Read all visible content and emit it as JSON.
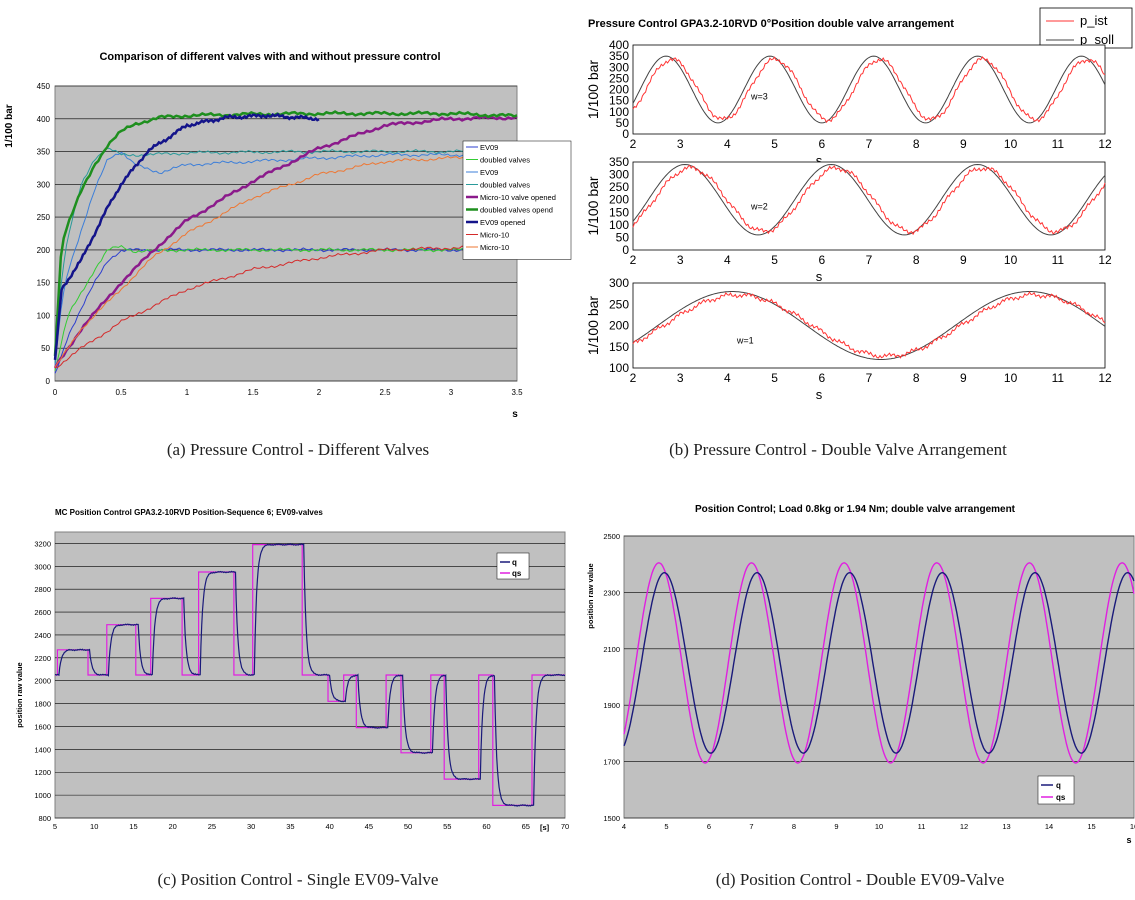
{
  "captions": {
    "a": "(a)  Pressure Control - Different Valves",
    "b": "(b)  Pressure Control - Double Valve Arrangement",
    "c": "(c)  Position Control - Single EV09-Valve",
    "d": "(d)  Position Control - Double EV09-Valve"
  },
  "chart_data": [
    {
      "id": "a",
      "type": "line",
      "title": "Comparison of different valves with and without pressure control",
      "xlabel": "s",
      "ylabel": "1/100 bar",
      "xlim": [
        0,
        3.5
      ],
      "ylim": [
        0,
        450
      ],
      "xticks": [
        "0",
        "0.5",
        "1",
        "1.5",
        "2",
        "2.5",
        "3",
        "3.5"
      ],
      "yticks": [
        "0",
        "50",
        "100",
        "150",
        "200",
        "250",
        "300",
        "350",
        "400",
        "450"
      ],
      "grid": true,
      "legend_position": "right",
      "series": [
        {
          "name": "EV09",
          "color": "#2e3fcf",
          "x": [
            0,
            0.05,
            0.1,
            0.2,
            0.3,
            0.4,
            0.5,
            0.6,
            1,
            2,
            3,
            3.5
          ],
          "y": [
            10,
            40,
            70,
            110,
            150,
            185,
            198,
            200,
            200,
            200,
            200,
            200
          ]
        },
        {
          "name": "doubled valves",
          "color": "#33cc33",
          "x": [
            0,
            0.05,
            0.1,
            0.2,
            0.3,
            0.4,
            0.5,
            0.6,
            1,
            2,
            3,
            3.5
          ],
          "y": [
            15,
            60,
            100,
            135,
            170,
            200,
            205,
            198,
            200,
            200,
            200,
            200
          ]
        },
        {
          "name": "EV09",
          "color": "#3d7fd9",
          "x": [
            0,
            0.05,
            0.1,
            0.2,
            0.3,
            0.4,
            0.5,
            0.6,
            0.8,
            1,
            1.5,
            2,
            2.5,
            3,
            3.5
          ],
          "y": [
            20,
            120,
            170,
            230,
            290,
            340,
            350,
            330,
            318,
            330,
            335,
            340,
            345,
            345,
            345
          ]
        },
        {
          "name": "doubled valves",
          "color": "#2a9a9a",
          "x": [
            0,
            0.05,
            0.1,
            0.2,
            0.3,
            0.4,
            0.5,
            0.7,
            1,
            2,
            3,
            3.5
          ],
          "y": [
            30,
            160,
            220,
            300,
            340,
            355,
            345,
            345,
            348,
            350,
            350,
            350
          ]
        },
        {
          "name": "Micro-10 valve opened",
          "color": "#8b1a8b",
          "x": [
            0,
            0.2,
            0.5,
            0.75,
            1,
            1.5,
            2,
            2.5,
            3,
            3.5
          ],
          "y": [
            20,
            80,
            150,
            200,
            245,
            305,
            355,
            390,
            400,
            402
          ]
        },
        {
          "name": "doubled valves opend",
          "color": "#1e8f1e",
          "x": [
            0,
            0.05,
            0.1,
            0.2,
            0.3,
            0.4,
            0.5,
            0.6,
            0.8,
            1,
            1.5,
            2,
            2.5,
            3,
            3.5
          ],
          "y": [
            40,
            210,
            240,
            290,
            330,
            360,
            380,
            392,
            402,
            405,
            407,
            408,
            408,
            408,
            404
          ]
        },
        {
          "name": "EV09 opened",
          "color": "#14148a",
          "x": [
            0,
            0.05,
            0.1,
            0.2,
            0.3,
            0.4,
            0.5,
            0.7,
            1,
            1.3,
            1.6,
            2
          ],
          "y": [
            30,
            140,
            155,
            185,
            225,
            265,
            300,
            350,
            390,
            402,
            405,
            400
          ]
        },
        {
          "name": "Micro-10",
          "color": "#d42a2a",
          "x": [
            0,
            0.2,
            0.5,
            0.75,
            1,
            1.5,
            2,
            2.5,
            3,
            3.5
          ],
          "y": [
            20,
            50,
            90,
            115,
            140,
            170,
            188,
            200,
            203,
            205
          ]
        },
        {
          "name": "Micro-10",
          "color": "#ee7733",
          "x": [
            0,
            0.2,
            0.5,
            0.75,
            1,
            1.5,
            2,
            2.5,
            3,
            3.5
          ],
          "y": [
            20,
            80,
            140,
            190,
            225,
            280,
            315,
            335,
            340,
            345
          ]
        }
      ]
    },
    {
      "id": "b",
      "type": "line",
      "title": "Pressure Control GPA3.2-10RVD 0°Position double valve arrangement",
      "legend_position": "top-right",
      "legend": [
        "p_ist",
        "p_soll"
      ],
      "subplots": [
        {
          "annotation": "w=3",
          "xlabel": "s",
          "ylabel": "1/100 bar",
          "xlim": [
            2,
            12
          ],
          "ylim": [
            0,
            400
          ],
          "xticks": [
            "2",
            "3",
            "4",
            "5",
            "6",
            "7",
            "8",
            "9",
            "10",
            "11",
            "12"
          ],
          "yticks": [
            "0",
            "50",
            "100",
            "150",
            "200",
            "250",
            "300",
            "350",
            "400"
          ],
          "mean": 200,
          "amplitude": 150,
          "period": 2.2,
          "peak_x": 2.7
        },
        {
          "annotation": "w=2",
          "xlabel": "s",
          "ylabel": "1/100 bar",
          "xlim": [
            2,
            12
          ],
          "ylim": [
            0,
            350
          ],
          "xticks": [
            "2",
            "3",
            "4",
            "5",
            "6",
            "7",
            "8",
            "9",
            "10",
            "11",
            "12"
          ],
          "yticks": [
            "0",
            "50",
            "100",
            "150",
            "200",
            "250",
            "300",
            "350"
          ],
          "mean": 200,
          "amplitude": 140,
          "period": 3.1,
          "peak_x": 3.1
        },
        {
          "annotation": "w=1",
          "xlabel": "s",
          "ylabel": "1/100 bar",
          "xlim": [
            2,
            12
          ],
          "ylim": [
            100,
            300
          ],
          "xticks": [
            "2",
            "3",
            "4",
            "5",
            "6",
            "7",
            "8",
            "9",
            "10",
            "11",
            "12"
          ],
          "yticks": [
            "100",
            "150",
            "200",
            "250",
            "300"
          ],
          "mean": 200,
          "amplitude": 80,
          "period": 6.3,
          "peak_x": 4.1
        }
      ]
    },
    {
      "id": "c",
      "type": "line",
      "title": "MC Position Control GPA3.2-10RVD Position-Sequence 6; EV09-valves",
      "xlabel": "[s]",
      "ylabel": "position raw value",
      "xlim": [
        5,
        70
      ],
      "ylim": [
        800,
        3300
      ],
      "xticks": [
        "5",
        "10",
        "15",
        "20",
        "25",
        "30",
        "35",
        "40",
        "45",
        "50",
        "55",
        "60",
        "65",
        "70"
      ],
      "yticks": [
        "800",
        "1000",
        "1200",
        "1400",
        "1600",
        "1800",
        "2000",
        "2200",
        "2400",
        "2600",
        "2800",
        "3000",
        "3200"
      ],
      "grid": true,
      "legend_position": "top-right",
      "legend": [
        "q",
        "qs"
      ],
      "qs_steps": [
        [
          5,
          2050
        ],
        [
          5.3,
          2270
        ],
        [
          9.2,
          2050
        ],
        [
          11.6,
          2490
        ],
        [
          15.3,
          2050
        ],
        [
          17.2,
          2720
        ],
        [
          21.2,
          2050
        ],
        [
          23.3,
          2950
        ],
        [
          27.8,
          2050
        ],
        [
          30.2,
          3190
        ],
        [
          36.5,
          2050
        ],
        [
          39.8,
          1820
        ],
        [
          41.8,
          2050
        ],
        [
          43.4,
          1590
        ],
        [
          47.2,
          2050
        ],
        [
          49.1,
          1370
        ],
        [
          52.9,
          2050
        ],
        [
          54.6,
          1140
        ],
        [
          59,
          2050
        ],
        [
          60.8,
          910
        ],
        [
          65.8,
          2050
        ],
        [
          70,
          2050
        ]
      ]
    },
    {
      "id": "d",
      "type": "line",
      "title": "Position Control; Load 0.8kg or 1.94 Nm; double valve arrangement",
      "xlabel": "s",
      "ylabel": "position raw value",
      "xlim": [
        4,
        16
      ],
      "ylim": [
        1500,
        2500
      ],
      "xticks": [
        "4",
        "5",
        "6",
        "7",
        "8",
        "9",
        "10",
        "11",
        "12",
        "13",
        "14",
        "15",
        "16"
      ],
      "yticks": [
        "1500",
        "1700",
        "1900",
        "2100",
        "2300",
        "2500"
      ],
      "grid": true,
      "legend_position": "bottom-right",
      "legend": [
        "q",
        "qs"
      ],
      "series": [
        {
          "name": "q",
          "color": "#1a1a7a",
          "mean": 2050,
          "amplitude": 320,
          "period": 2.18,
          "peak_x": 4.95
        },
        {
          "name": "qs",
          "color": "#e020e0",
          "mean": 2050,
          "amplitude": 355,
          "period": 2.18,
          "peak_x": 4.82
        }
      ]
    }
  ]
}
